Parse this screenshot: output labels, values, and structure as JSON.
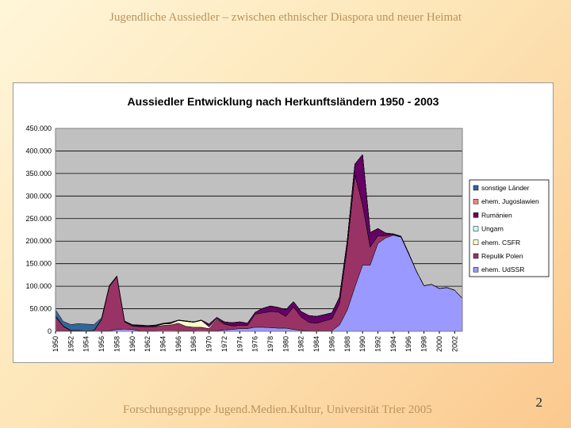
{
  "slide": {
    "title": "Jugendliche Aussiedler – zwischen ethnischer Diaspora und neuer Heimat",
    "footer": "Forschungsgruppe Jugend.Medien.Kultur, Universität Trier 2005",
    "page_number": "2"
  },
  "chart_data": {
    "type": "area",
    "stacked": true,
    "title": "Aussiedler Entwicklung nach Herkunftsländern 1950 - 2003",
    "xlabel": "",
    "ylabel": "",
    "ylim": [
      0,
      450000
    ],
    "y_ticks": [
      0,
      50000,
      100000,
      150000,
      200000,
      250000,
      300000,
      350000,
      400000,
      450000
    ],
    "y_tick_labels": [
      "0",
      "50.000",
      "100.000",
      "150.000",
      "200.000",
      "250.000",
      "300.000",
      "350.000",
      "400.000",
      "450.000"
    ],
    "x_tick_labels": [
      "1950",
      "1952",
      "1954",
      "1956",
      "1958",
      "1960",
      "1962",
      "1964",
      "1966",
      "1968",
      "1970",
      "1972",
      "1974",
      "1976",
      "1978",
      "1980",
      "1982",
      "1984",
      "1986",
      "1988",
      "1990",
      "1992",
      "1994",
      "1996",
      "1998",
      "2000",
      "2002"
    ],
    "grid": "horizontal",
    "plot_background": "#c0c0c0",
    "legend_position": "right",
    "x": [
      1950,
      1951,
      1952,
      1953,
      1954,
      1955,
      1956,
      1957,
      1958,
      1959,
      1960,
      1961,
      1962,
      1963,
      1964,
      1965,
      1966,
      1967,
      1968,
      1969,
      1970,
      1971,
      1972,
      1973,
      1974,
      1975,
      1976,
      1977,
      1978,
      1979,
      1980,
      1981,
      1982,
      1983,
      1984,
      1985,
      1986,
      1987,
      1988,
      1989,
      1990,
      1991,
      1992,
      1993,
      1994,
      1995,
      1996,
      1997,
      1998,
      1999,
      2000,
      2001,
      2002,
      2003
    ],
    "series": [
      {
        "name": "ehem. UdSSR",
        "color": "#9999ff",
        "values": [
          1000,
          1000,
          1000,
          1000,
          0,
          0,
          1000,
          1000,
          4000,
          5000,
          4000,
          1000,
          1000,
          1000,
          0,
          0,
          1000,
          1000,
          1000,
          0,
          1000,
          1000,
          3000,
          4000,
          6000,
          6000,
          9000,
          9000,
          8000,
          7000,
          7000,
          4000,
          2000,
          1000,
          1000,
          1000,
          1000,
          14000,
          47000,
          98000,
          147000,
          147000,
          195000,
          207000,
          213000,
          209000,
          172000,
          134000,
          101000,
          104000,
          95000,
          97000,
          91000,
          73000
        ]
      },
      {
        "name": "Repulik Polen",
        "color": "#993366",
        "values": [
          31000,
          10000,
          0,
          0,
          0,
          1000,
          25000,
          98000,
          117000,
          16000,
          8000,
          9000,
          9000,
          9000,
          13000,
          14000,
          17000,
          10000,
          8000,
          9000,
          5000,
          25000,
          13000,
          8000,
          7000,
          7000,
          29000,
          32000,
          36000,
          36000,
          26000,
          50000,
          30000,
          19000,
          17000,
          22000,
          27000,
          48000,
          140000,
          250000,
          134000,
          40000,
          17000,
          5000,
          2000,
          1000,
          1000,
          0,
          0,
          0,
          0,
          0,
          0,
          0
        ]
      },
      {
        "name": "ehem. CSFR",
        "color": "#ffffcc",
        "values": [
          1000,
          0,
          0,
          0,
          0,
          0,
          0,
          0,
          0,
          0,
          0,
          1000,
          0,
          1000,
          3000,
          3000,
          6000,
          11000,
          11000,
          15000,
          4000,
          2000,
          1000,
          0,
          0,
          0,
          0,
          0,
          0,
          0,
          0,
          0,
          0,
          0,
          0,
          0,
          0,
          0,
          0,
          0,
          0,
          0,
          0,
          0,
          0,
          0,
          0,
          0,
          0,
          0,
          0,
          0,
          0,
          0
        ]
      },
      {
        "name": "Ungarn",
        "color": "#ccffff",
        "values": [
          0,
          0,
          0,
          0,
          0,
          0,
          0,
          0,
          0,
          0,
          0,
          0,
          0,
          0,
          0,
          0,
          0,
          0,
          0,
          0,
          0,
          0,
          0,
          0,
          0,
          0,
          0,
          0,
          0,
          0,
          0,
          0,
          0,
          0,
          0,
          0,
          0,
          0,
          0,
          0,
          0,
          0,
          0,
          0,
          0,
          0,
          0,
          0,
          0,
          0,
          0,
          0,
          0,
          0
        ]
      },
      {
        "name": "Rumänien",
        "color": "#660066",
        "values": [
          1000,
          1000,
          1000,
          1000,
          1000,
          1000,
          1000,
          1000,
          1000,
          1000,
          2000,
          2000,
          2000,
          2000,
          1000,
          2000,
          1000,
          1000,
          1000,
          1000,
          6000,
          3000,
          4000,
          7000,
          8000,
          5000,
          4000,
          10000,
          12000,
          10000,
          15000,
          12000,
          12000,
          15000,
          15000,
          14000,
          13000,
          14000,
          13000,
          23000,
          111000,
          32000,
          16000,
          6000,
          1000,
          1000,
          1000,
          0,
          0,
          0,
          0,
          0,
          0,
          0
        ]
      },
      {
        "name": "ehem. Jugoslawien",
        "color": "#ff8080",
        "values": [
          0,
          0,
          0,
          0,
          0,
          0,
          0,
          0,
          0,
          0,
          0,
          0,
          0,
          0,
          0,
          0,
          0,
          0,
          0,
          0,
          0,
          0,
          0,
          0,
          0,
          0,
          0,
          0,
          0,
          0,
          0,
          0,
          0,
          0,
          0,
          0,
          0,
          0,
          0,
          0,
          0,
          0,
          0,
          0,
          0,
          0,
          0,
          0,
          0,
          0,
          0,
          0,
          0,
          0
        ]
      },
      {
        "name": "sonstige Länder",
        "color": "#336699",
        "values": [
          14000,
          10000,
          13000,
          15000,
          15000,
          13000,
          3000,
          2000,
          1000,
          1000,
          1000,
          1000,
          1000,
          1000,
          1000,
          1000,
          0,
          0,
          0,
          0,
          0,
          0,
          0,
          0,
          0,
          0,
          0,
          0,
          0,
          0,
          0,
          0,
          0,
          0,
          0,
          0,
          0,
          0,
          0,
          0,
          0,
          0,
          0,
          0,
          0,
          0,
          0,
          0,
          0,
          0,
          0,
          0,
          0,
          0
        ]
      }
    ]
  }
}
